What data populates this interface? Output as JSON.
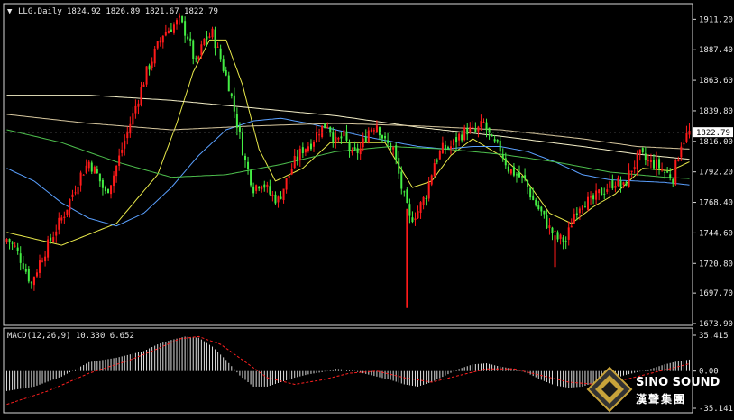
{
  "header": {
    "triangle": "▼",
    "symbol": "LLG,Daily",
    "ohlc": "1824.92 1826.89 1821.67 1822.79"
  },
  "price_axis": {
    "ticks": [
      "1911.20",
      "1887.40",
      "1863.60",
      "1839.80",
      "1816.00",
      "1792.20",
      "1768.40",
      "1744.60",
      "1720.80",
      "1697.70",
      "1673.90"
    ],
    "current_label": "1822.79"
  },
  "macd_panel": {
    "label": "MACD(12,26,9) 10.330 6.652",
    "ticks": [
      "35.415",
      "0.00",
      "-35.141"
    ]
  },
  "watermark": {
    "brand": "SINO SOUND",
    "chinese": "漢聲集團"
  },
  "colors": {
    "background": "#000000",
    "bull": "#ff1a1a",
    "bear": "#44ee44",
    "ma_short": "#e8e84a",
    "ma_mid": "#5aa0ff",
    "ma_long1": "#f5f0c8",
    "ma_long2": "#4ec04e",
    "ma_long3": "#d9c9a0",
    "macd_hist": "#dddddd",
    "macd_signal": "#ff2020",
    "frame": "#d8d8d8"
  },
  "chart_data": {
    "type": "candlestick",
    "ylim": [
      1673.9,
      1922.0
    ],
    "current_price": 1822.79,
    "macd_ylim": [
      -35.141,
      35.415
    ],
    "key_closes": [
      [
        0,
        1740
      ],
      [
        3,
        1733
      ],
      [
        6,
        1720
      ],
      [
        9,
        1705
      ],
      [
        12,
        1722
      ],
      [
        15,
        1735
      ],
      [
        18,
        1748
      ],
      [
        21,
        1760
      ],
      [
        24,
        1775
      ],
      [
        27,
        1790
      ],
      [
        30,
        1800
      ],
      [
        33,
        1790
      ],
      [
        36,
        1775
      ],
      [
        39,
        1790
      ],
      [
        42,
        1810
      ],
      [
        45,
        1830
      ],
      [
        48,
        1850
      ],
      [
        51,
        1870
      ],
      [
        54,
        1885
      ],
      [
        57,
        1900
      ],
      [
        60,
        1905
      ],
      [
        63,
        1910
      ],
      [
        66,
        1898
      ],
      [
        69,
        1875
      ],
      [
        72,
        1895
      ],
      [
        75,
        1900
      ],
      [
        78,
        1880
      ],
      [
        81,
        1860
      ],
      [
        84,
        1830
      ],
      [
        87,
        1800
      ],
      [
        90,
        1780
      ],
      [
        93,
        1785
      ],
      [
        96,
        1775
      ],
      [
        99,
        1770
      ],
      [
        102,
        1785
      ],
      [
        105,
        1800
      ],
      [
        108,
        1810
      ],
      [
        111,
        1815
      ],
      [
        114,
        1825
      ],
      [
        117,
        1830
      ],
      [
        120,
        1815
      ],
      [
        123,
        1820
      ],
      [
        126,
        1805
      ],
      [
        129,
        1810
      ],
      [
        132,
        1825
      ],
      [
        135,
        1830
      ],
      [
        138,
        1815
      ],
      [
        141,
        1810
      ],
      [
        144,
        1780
      ],
      [
        147,
        1755
      ],
      [
        150,
        1762
      ],
      [
        153,
        1775
      ],
      [
        156,
        1800
      ],
      [
        159,
        1810
      ],
      [
        162,
        1812
      ],
      [
        165,
        1820
      ],
      [
        168,
        1825
      ],
      [
        171,
        1823
      ],
      [
        174,
        1830
      ],
      [
        177,
        1815
      ],
      [
        180,
        1810
      ],
      [
        183,
        1795
      ],
      [
        186,
        1790
      ],
      [
        189,
        1785
      ],
      [
        192,
        1770
      ],
      [
        195,
        1760
      ],
      [
        198,
        1748
      ],
      [
        201,
        1740
      ],
      [
        204,
        1738
      ],
      [
        207,
        1760
      ],
      [
        210,
        1770
      ],
      [
        213,
        1768
      ],
      [
        216,
        1775
      ],
      [
        219,
        1780
      ],
      [
        222,
        1785
      ],
      [
        225,
        1780
      ],
      [
        228,
        1795
      ],
      [
        231,
        1805
      ],
      [
        234,
        1800
      ],
      [
        237,
        1798
      ],
      [
        240,
        1792
      ],
      [
        243,
        1788
      ],
      [
        246,
        1815
      ],
      [
        249,
        1822.79
      ]
    ],
    "moving_averages": [
      {
        "key": "ma_short",
        "points": [
          [
            0,
            1745
          ],
          [
            20,
            1735
          ],
          [
            40,
            1752
          ],
          [
            55,
            1790
          ],
          [
            62,
            1830
          ],
          [
            68,
            1870
          ],
          [
            74,
            1895
          ],
          [
            80,
            1895
          ],
          [
            86,
            1860
          ],
          [
            92,
            1810
          ],
          [
            98,
            1785
          ],
          [
            108,
            1795
          ],
          [
            118,
            1815
          ],
          [
            128,
            1815
          ],
          [
            138,
            1815
          ],
          [
            148,
            1780
          ],
          [
            155,
            1785
          ],
          [
            162,
            1805
          ],
          [
            170,
            1818
          ],
          [
            180,
            1805
          ],
          [
            188,
            1790
          ],
          [
            198,
            1760
          ],
          [
            206,
            1752
          ],
          [
            214,
            1765
          ],
          [
            222,
            1775
          ],
          [
            232,
            1795
          ],
          [
            242,
            1793
          ],
          [
            249,
            1800
          ]
        ]
      },
      {
        "key": "ma_mid",
        "points": [
          [
            0,
            1795
          ],
          [
            10,
            1785
          ],
          [
            20,
            1768
          ],
          [
            30,
            1756
          ],
          [
            40,
            1750
          ],
          [
            50,
            1760
          ],
          [
            60,
            1780
          ],
          [
            70,
            1805
          ],
          [
            80,
            1825
          ],
          [
            90,
            1832
          ],
          [
            100,
            1834
          ],
          [
            110,
            1830
          ],
          [
            120,
            1825
          ],
          [
            130,
            1820
          ],
          [
            140,
            1816
          ],
          [
            150,
            1812
          ],
          [
            160,
            1810
          ],
          [
            170,
            1812
          ],
          [
            180,
            1812
          ],
          [
            190,
            1808
          ],
          [
            200,
            1800
          ],
          [
            210,
            1790
          ],
          [
            220,
            1786
          ],
          [
            230,
            1785
          ],
          [
            240,
            1784
          ],
          [
            249,
            1782
          ]
        ]
      },
      {
        "key": "ma_long1",
        "points": [
          [
            0,
            1852
          ],
          [
            30,
            1852
          ],
          [
            60,
            1848
          ],
          [
            90,
            1842
          ],
          [
            120,
            1836
          ],
          [
            150,
            1827
          ],
          [
            180,
            1820
          ],
          [
            210,
            1812
          ],
          [
            230,
            1806
          ],
          [
            249,
            1802
          ]
        ]
      },
      {
        "key": "ma_long2",
        "points": [
          [
            0,
            1825
          ],
          [
            20,
            1815
          ],
          [
            40,
            1800
          ],
          [
            60,
            1788
          ],
          [
            80,
            1790
          ],
          [
            100,
            1798
          ],
          [
            120,
            1808
          ],
          [
            140,
            1812
          ],
          [
            160,
            1810
          ],
          [
            180,
            1806
          ],
          [
            200,
            1800
          ],
          [
            220,
            1792
          ],
          [
            240,
            1788
          ],
          [
            249,
            1787
          ]
        ]
      },
      {
        "key": "ma_long3",
        "points": [
          [
            0,
            1837
          ],
          [
            30,
            1830
          ],
          [
            60,
            1825
          ],
          [
            90,
            1828
          ],
          [
            120,
            1830
          ],
          [
            150,
            1828
          ],
          [
            180,
            1825
          ],
          [
            210,
            1818
          ],
          [
            230,
            1812
          ],
          [
            249,
            1810
          ]
        ]
      }
    ],
    "macd_hist_points": [
      [
        0,
        -18
      ],
      [
        10,
        -14
      ],
      [
        20,
        -5
      ],
      [
        30,
        8
      ],
      [
        40,
        12
      ],
      [
        50,
        18
      ],
      [
        55,
        24
      ],
      [
        60,
        28
      ],
      [
        65,
        31
      ],
      [
        70,
        30
      ],
      [
        75,
        22
      ],
      [
        80,
        10
      ],
      [
        85,
        -4
      ],
      [
        90,
        -14
      ],
      [
        95,
        -14
      ],
      [
        100,
        -10
      ],
      [
        105,
        -6
      ],
      [
        110,
        -3
      ],
      [
        115,
        -1
      ],
      [
        120,
        2
      ],
      [
        125,
        1
      ],
      [
        130,
        -2
      ],
      [
        135,
        -5
      ],
      [
        140,
        -8
      ],
      [
        145,
        -12
      ],
      [
        150,
        -14
      ],
      [
        155,
        -10
      ],
      [
        160,
        -4
      ],
      [
        165,
        2
      ],
      [
        170,
        6
      ],
      [
        175,
        7
      ],
      [
        180,
        4
      ],
      [
        185,
        2
      ],
      [
        190,
        -2
      ],
      [
        195,
        -8
      ],
      [
        200,
        -13
      ],
      [
        205,
        -15
      ],
      [
        210,
        -14
      ],
      [
        215,
        -10
      ],
      [
        220,
        -8
      ],
      [
        225,
        -4
      ],
      [
        230,
        -1
      ],
      [
        235,
        2
      ],
      [
        240,
        6
      ],
      [
        245,
        9
      ],
      [
        249,
        10.33
      ]
    ],
    "macd_signal_points": [
      [
        0,
        -30
      ],
      [
        15,
        -18
      ],
      [
        30,
        -2
      ],
      [
        45,
        10
      ],
      [
        55,
        20
      ],
      [
        63,
        29
      ],
      [
        70,
        31
      ],
      [
        78,
        24
      ],
      [
        86,
        10
      ],
      [
        95,
        -6
      ],
      [
        105,
        -12
      ],
      [
        115,
        -8
      ],
      [
        125,
        -2
      ],
      [
        135,
        0
      ],
      [
        145,
        -6
      ],
      [
        155,
        -10
      ],
      [
        165,
        -4
      ],
      [
        175,
        2
      ],
      [
        185,
        2
      ],
      [
        195,
        -4
      ],
      [
        205,
        -10
      ],
      [
        215,
        -12
      ],
      [
        225,
        -8
      ],
      [
        235,
        -2
      ],
      [
        245,
        4
      ],
      [
        249,
        6.652
      ]
    ]
  }
}
